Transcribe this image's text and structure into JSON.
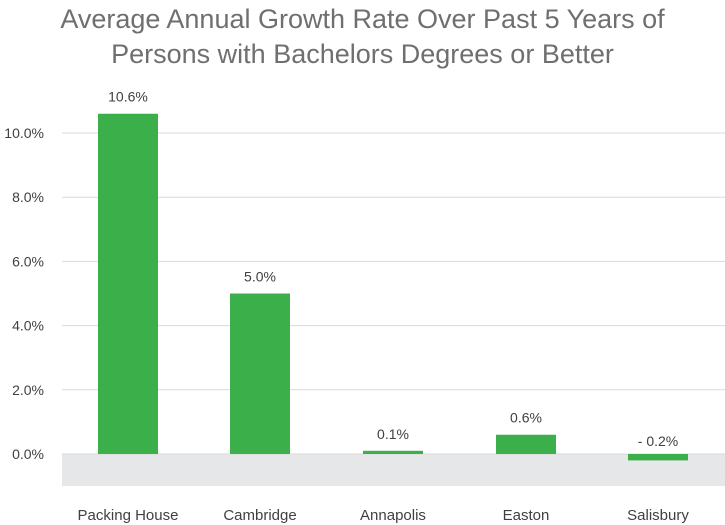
{
  "chart_data": {
    "type": "bar",
    "title_line1": "Average Annual Growth Rate Over Past 5 Years of",
    "title_line2": "Persons with Bachelors Degrees or Better",
    "title": "Average Annual Growth Rate Over Past 5 Years of Persons with Bachelors Degrees or Better",
    "xlabel": "",
    "ylabel": "",
    "categories": [
      "Packing House",
      "Cambridge",
      "Annapolis",
      "Easton",
      "Salisbury"
    ],
    "values": [
      10.6,
      5.0,
      0.1,
      0.6,
      -0.2
    ],
    "data_labels": [
      "10.6%",
      "5.0%",
      "0.1%",
      "0.6%",
      "- 0.2%"
    ],
    "ylim": [
      -1.0,
      11.0
    ],
    "yticks": [
      0,
      2,
      4,
      6,
      8,
      10
    ],
    "ytick_labels": [
      "0.0%",
      "2.0%",
      "4.0%",
      "6.0%",
      "8.0%",
      "10.0%"
    ],
    "grid": true,
    "legend": "none",
    "colors": {
      "bar": "#3bb04a",
      "gridline": "#d9d9d9",
      "negative_band": "#e6e7e8",
      "title": "#6f6f6f",
      "text": "#404040"
    }
  }
}
